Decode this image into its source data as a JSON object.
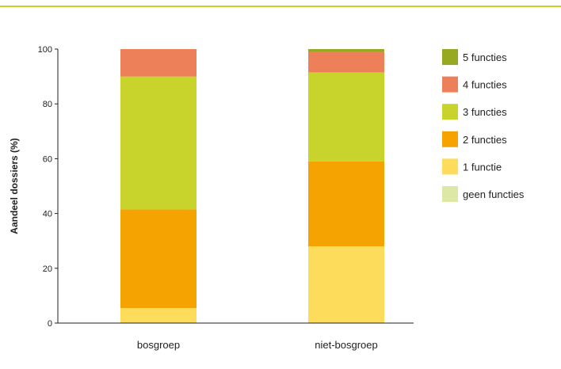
{
  "chart_data": {
    "type": "bar",
    "stacked": true,
    "ylabel": "Aandeel dossiers (%)",
    "xlabel": "",
    "ylim": [
      0,
      100
    ],
    "yticks": [
      0,
      20,
      40,
      60,
      80,
      100
    ],
    "grid": false,
    "legend_position": "right",
    "categories": [
      "bosgroep",
      "niet-bosgroep"
    ],
    "series": [
      {
        "name": "geen functies",
        "color": "#dde7a6",
        "values": [
          0,
          0
        ]
      },
      {
        "name": "1 functie",
        "color": "#fddc5c",
        "values": [
          5.5,
          28
        ]
      },
      {
        "name": "2 functies",
        "color": "#f5a300",
        "values": [
          36,
          31
        ]
      },
      {
        "name": "3 functies",
        "color": "#c8d42b",
        "values": [
          48.5,
          32.5
        ]
      },
      {
        "name": "4 functies",
        "color": "#ee8059",
        "values": [
          10,
          7.5
        ]
      },
      {
        "name": "5 functies",
        "color": "#97a821",
        "values": [
          0,
          1
        ]
      }
    ]
  },
  "colors": {
    "accent_rule": "#c6d32a",
    "axis": "#222222"
  }
}
